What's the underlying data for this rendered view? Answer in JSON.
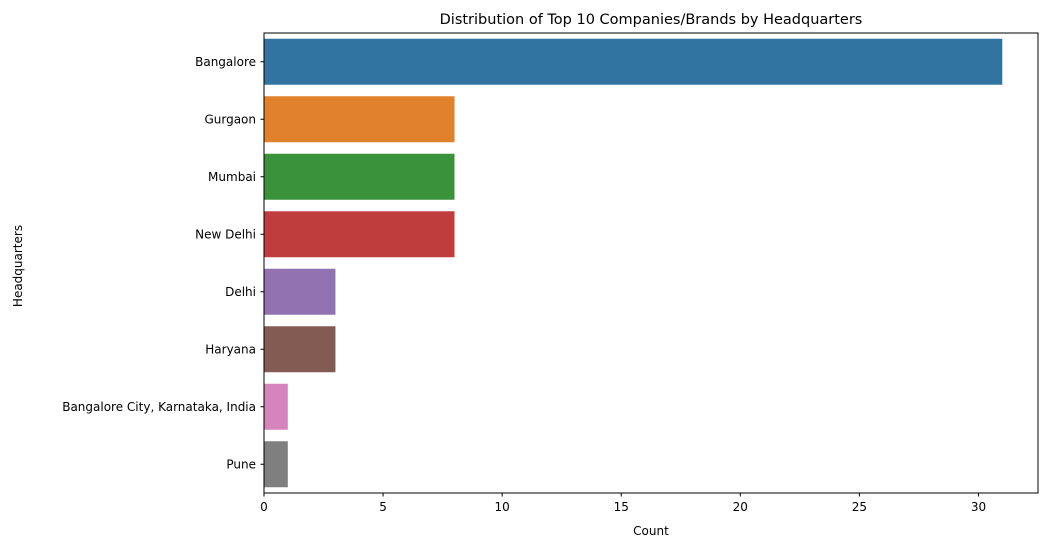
{
  "chart_data": {
    "type": "bar",
    "orientation": "horizontal",
    "title": "Distribution of Top 10 Companies/Brands by Headquarters",
    "xlabel": "Count",
    "ylabel": "Headquarters",
    "xlim": [
      0,
      32.5
    ],
    "xticks": [
      0,
      5,
      10,
      15,
      20,
      25,
      30
    ],
    "grid": false,
    "categories": [
      "Bangalore",
      "Gurgaon",
      "Mumbai",
      "New Delhi",
      "Delhi",
      "Haryana",
      "Bangalore City, Karnataka, India",
      "Pune"
    ],
    "values": [
      31,
      8,
      8,
      8,
      3,
      3,
      1,
      1
    ],
    "colors": [
      "#3274a1",
      "#e1812c",
      "#3a923a",
      "#c03d3e",
      "#9372b2",
      "#845b53",
      "#d684bd",
      "#7f7f7f"
    ]
  }
}
